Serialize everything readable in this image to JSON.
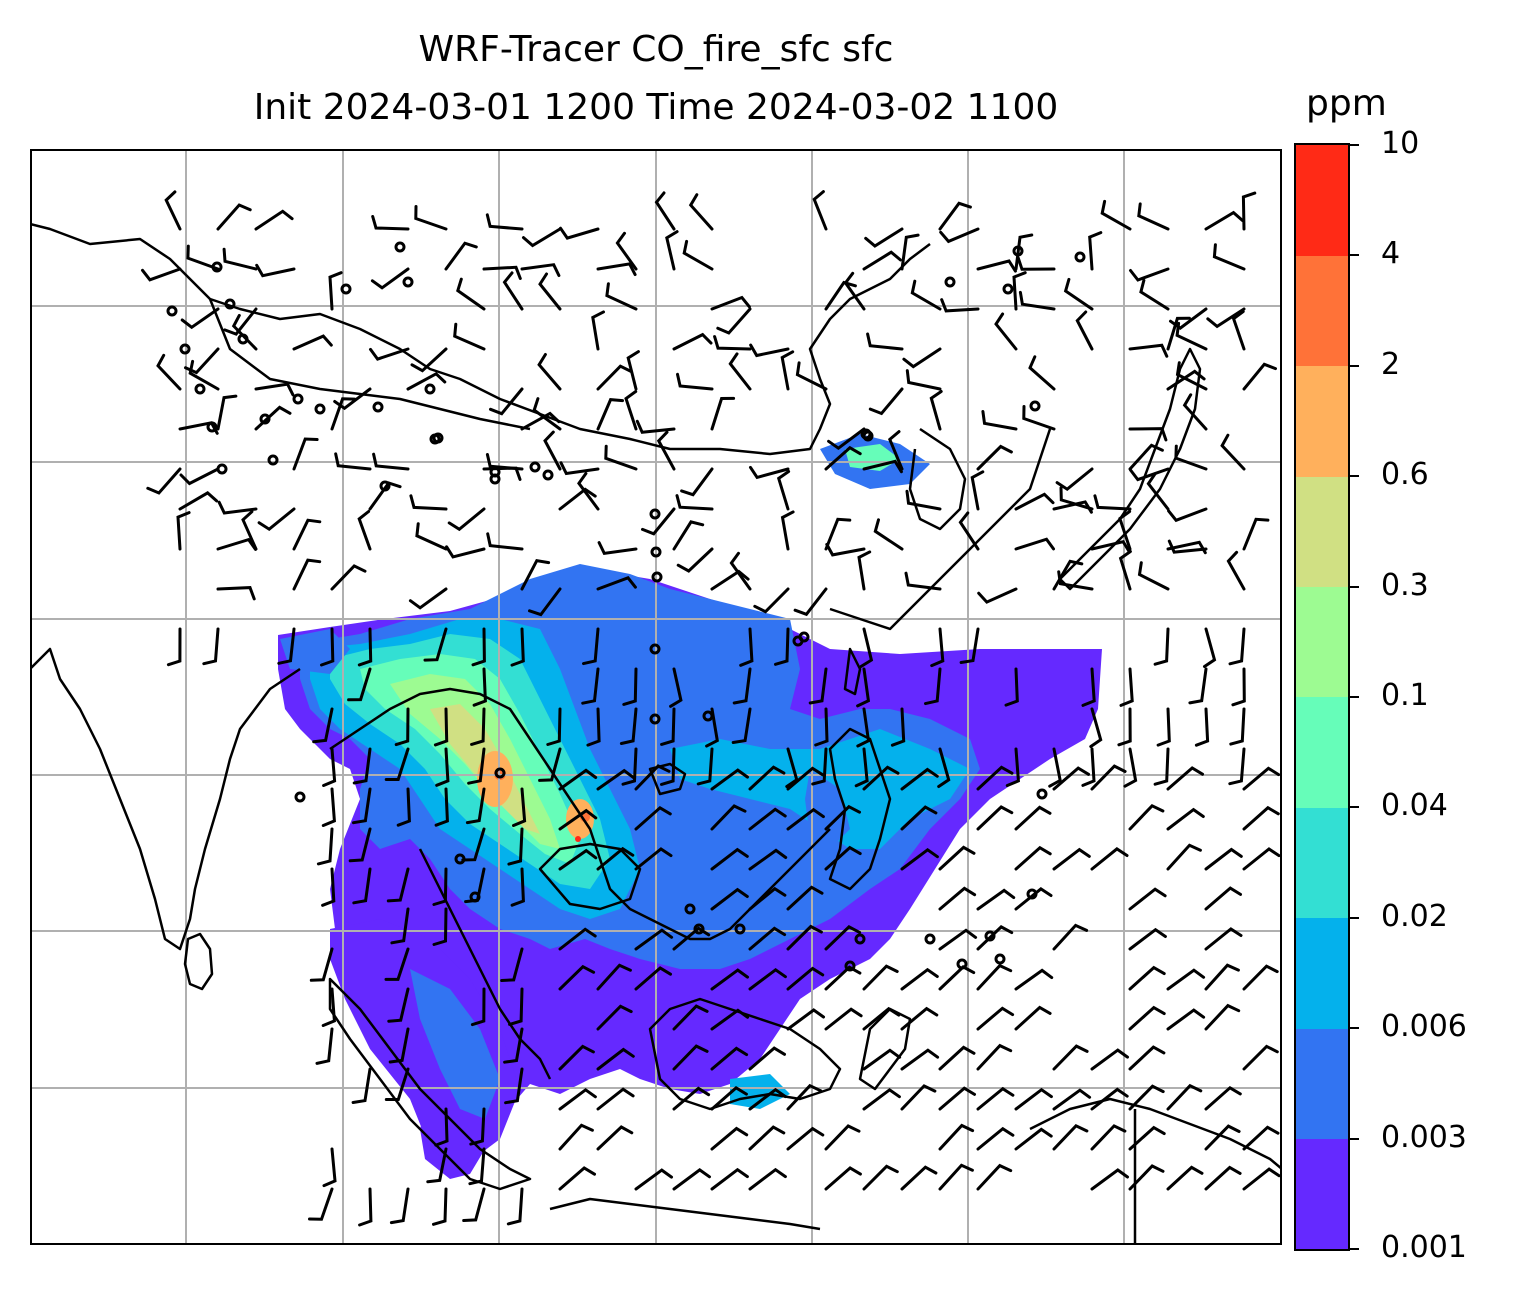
{
  "title": {
    "line1": "WRF-Tracer CO_fire_sfc sfc",
    "line2": "Init 2024-03-01 1200 Time 2024-03-02 1100"
  },
  "colorbar": {
    "unit": "ppm",
    "ticks": [
      "0.001",
      "0.003",
      "0.006",
      "0.02",
      "0.04",
      "0.1",
      "0.3",
      "0.6",
      "2",
      "4",
      "10"
    ],
    "colors": [
      "#6529ff",
      "#3274f2",
      "#04b1ec",
      "#33dfd3",
      "#66fdb9",
      "#9dfb92",
      "#d0e083",
      "#ffb05c",
      "#ff7238",
      "#ff2a16"
    ]
  },
  "map": {
    "grid_color": "#b0b0b0",
    "coastline_color": "#000000",
    "wind_barbs": "black"
  }
}
